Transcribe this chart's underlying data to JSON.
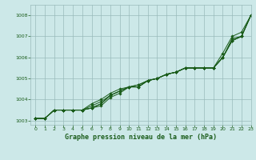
{
  "title": "Graphe pression niveau de la mer (hPa)",
  "xlim": [
    -0.5,
    23
  ],
  "ylim": [
    1002.8,
    1008.5
  ],
  "yticks": [
    1003,
    1004,
    1005,
    1006,
    1007,
    1008
  ],
  "xticks": [
    0,
    1,
    2,
    3,
    4,
    5,
    6,
    7,
    8,
    9,
    10,
    11,
    12,
    13,
    14,
    15,
    16,
    17,
    18,
    19,
    20,
    21,
    22,
    23
  ],
  "bg_color": "#cce8e8",
  "grid_color": "#99bbbb",
  "line_color": "#1a5c1a",
  "lines": [
    [
      1003.1,
      1003.1,
      1003.5,
      1003.5,
      1003.5,
      1003.5,
      1003.8,
      1004.0,
      1004.3,
      1004.5,
      1004.6,
      1004.7,
      1004.9,
      1005.0,
      1005.2,
      1005.3,
      1005.5,
      1005.5,
      1005.5,
      1005.5,
      1006.2,
      1007.0,
      1007.2,
      1008.0
    ],
    [
      1003.1,
      1003.1,
      1003.5,
      1003.5,
      1003.5,
      1003.5,
      1003.7,
      1003.9,
      1004.2,
      1004.4,
      1004.6,
      1004.7,
      1004.9,
      1005.0,
      1005.2,
      1005.3,
      1005.5,
      1005.5,
      1005.5,
      1005.5,
      1006.0,
      1006.9,
      1007.0,
      1008.0
    ],
    [
      1003.1,
      1003.1,
      1003.5,
      1003.5,
      1003.5,
      1003.5,
      1003.6,
      1003.8,
      1004.2,
      1004.4,
      1004.6,
      1004.6,
      1004.9,
      1005.0,
      1005.2,
      1005.3,
      1005.5,
      1005.5,
      1005.5,
      1005.5,
      1006.0,
      1006.8,
      1007.0,
      1008.0
    ],
    [
      1003.1,
      1003.1,
      1003.5,
      1003.5,
      1003.5,
      1003.5,
      1003.6,
      1003.8,
      1004.2,
      1004.4,
      1004.6,
      1004.6,
      1004.9,
      1005.0,
      1005.2,
      1005.3,
      1005.5,
      1005.5,
      1005.5,
      1005.5,
      1006.0,
      1006.8,
      1007.0,
      1008.0
    ],
    [
      1003.1,
      1003.1,
      1003.5,
      1003.5,
      1003.5,
      1003.5,
      1003.6,
      1003.7,
      1004.1,
      1004.3,
      1004.6,
      1004.6,
      1004.9,
      1005.0,
      1005.2,
      1005.3,
      1005.5,
      1005.5,
      1005.5,
      1005.5,
      1006.0,
      1006.8,
      1007.0,
      1008.0
    ]
  ]
}
